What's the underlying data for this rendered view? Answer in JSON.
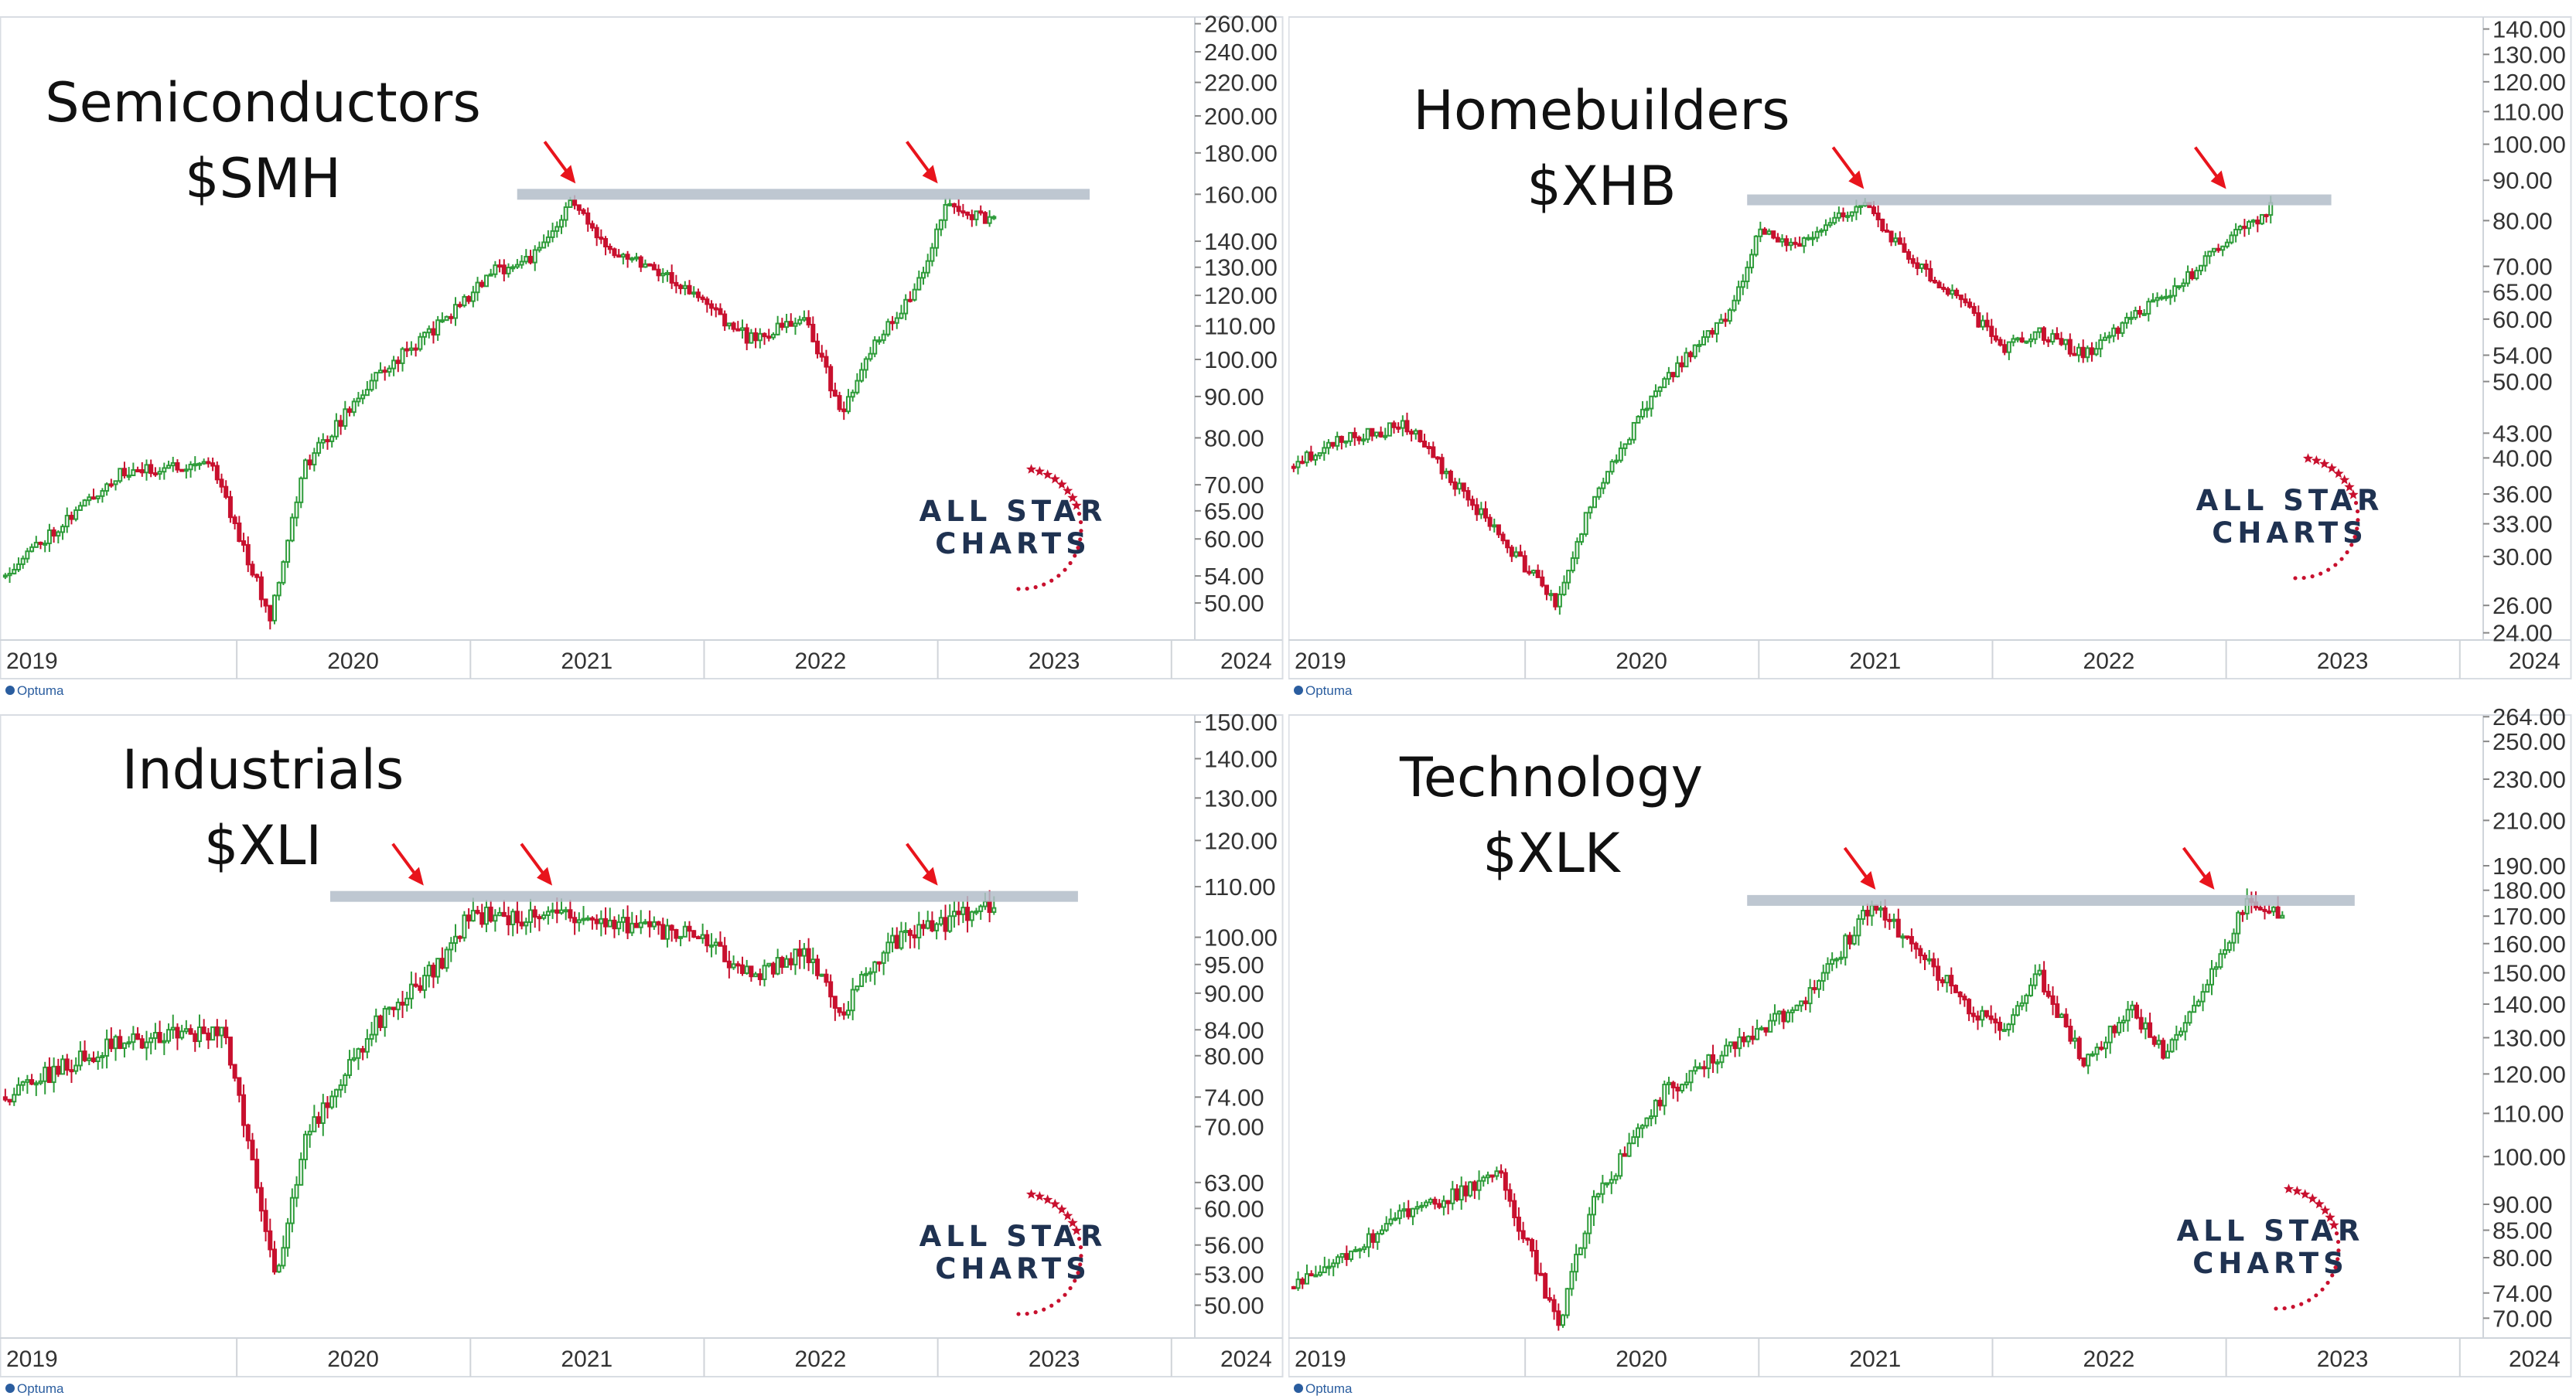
{
  "watermark": {
    "brand_line1": "ALL STAR",
    "brand_line2": "CHARTS",
    "credit": "Optuma"
  },
  "chart_data": [
    {
      "type": "candlestick",
      "title": "Semiconductors",
      "subtitle": "$SMH",
      "y_scale": "log",
      "ylim": [
        45,
        265
      ],
      "xlim": [
        2019.0,
        2024.1
      ],
      "yticks": [
        "260.00",
        "240.00",
        "220.00",
        "200.00",
        "180.00",
        "160.00",
        "140.00",
        "130.00",
        "120.00",
        "110.00",
        "100.00",
        "90.00",
        "80.00",
        "70.00",
        "65.00",
        "60.00",
        "54.00",
        "50.00"
      ],
      "xticks": [
        "2019",
        "2020",
        "2021",
        "2022",
        "2023",
        "2024"
      ],
      "resistance_level": 160,
      "resistance_span": [
        2021.2,
        2023.65
      ],
      "arrows_at": [
        2021.45,
        2023.0
      ],
      "keypoints": [
        [
          2019.0,
          54
        ],
        [
          2019.5,
          72
        ],
        [
          2019.9,
          75
        ],
        [
          2020.15,
          48
        ],
        [
          2020.3,
          74
        ],
        [
          2020.6,
          95
        ],
        [
          2020.9,
          112
        ],
        [
          2021.1,
          128
        ],
        [
          2021.3,
          135
        ],
        [
          2021.45,
          158
        ],
        [
          2021.55,
          140
        ],
        [
          2021.8,
          130
        ],
        [
          2022.0,
          118
        ],
        [
          2022.2,
          106
        ],
        [
          2022.45,
          112
        ],
        [
          2022.6,
          85
        ],
        [
          2022.75,
          106
        ],
        [
          2022.9,
          120
        ],
        [
          2023.05,
          155
        ],
        [
          2023.25,
          148
        ]
      ],
      "seed": 11
    },
    {
      "type": "candlestick",
      "title": "Homebuilders",
      "subtitle": "$XHB",
      "y_scale": "log",
      "ylim": [
        23.5,
        145
      ],
      "xlim": [
        2019.0,
        2024.1
      ],
      "yticks": [
        "140.00",
        "130.00",
        "120.00",
        "110.00",
        "100.00",
        "90.00",
        "80.00",
        "70.00",
        "65.00",
        "60.00",
        "54.00",
        "50.00",
        "43.00",
        "40.00",
        "36.00",
        "33.00",
        "30.00",
        "26.00",
        "24.00"
      ],
      "xticks": [
        "2019",
        "2020",
        "2021",
        "2022",
        "2023",
        "2024"
      ],
      "resistance_level": 85,
      "resistance_span": [
        2020.95,
        2023.45
      ],
      "arrows_at": [
        2021.45,
        2023.0
      ],
      "keypoints": [
        [
          2019.0,
          39
        ],
        [
          2019.2,
          42
        ],
        [
          2019.5,
          44
        ],
        [
          2020.15,
          26
        ],
        [
          2020.3,
          36
        ],
        [
          2020.6,
          50
        ],
        [
          2020.9,
          62
        ],
        [
          2021.0,
          77
        ],
        [
          2021.2,
          75
        ],
        [
          2021.45,
          85
        ],
        [
          2021.65,
          72
        ],
        [
          2021.9,
          62
        ],
        [
          2022.05,
          55
        ],
        [
          2022.2,
          58
        ],
        [
          2022.4,
          54
        ],
        [
          2022.6,
          60
        ],
        [
          2022.8,
          66
        ],
        [
          2023.0,
          75
        ],
        [
          2023.2,
          83
        ]
      ],
      "seed": 23
    },
    {
      "type": "candlestick",
      "title": "Industrials",
      "subtitle": "$XLI",
      "y_scale": "log",
      "ylim": [
        47,
        152
      ],
      "xlim": [
        2019.0,
        2024.1
      ],
      "yticks": [
        "150.00",
        "140.00",
        "130.00",
        "120.00",
        "110.00",
        "100.00",
        "95.00",
        "90.00",
        "84.00",
        "80.00",
        "74.00",
        "70.00",
        "63.00",
        "60.00",
        "56.00",
        "53.00",
        "50.00"
      ],
      "xticks": [
        "2019",
        "2020",
        "2021",
        "2022",
        "2023",
        "2024"
      ],
      "resistance_level": 108,
      "resistance_span": [
        2020.4,
        2023.6
      ],
      "arrows_at": [
        2020.8,
        2021.35,
        2023.0
      ],
      "keypoints": [
        [
          2019.0,
          74
        ],
        [
          2019.5,
          82
        ],
        [
          2019.95,
          84
        ],
        [
          2020.18,
          53
        ],
        [
          2020.3,
          68
        ],
        [
          2020.6,
          85
        ],
        [
          2020.9,
          96
        ],
        [
          2021.0,
          104
        ],
        [
          2021.2,
          104
        ],
        [
          2021.45,
          104
        ],
        [
          2021.7,
          102
        ],
        [
          2022.0,
          100
        ],
        [
          2022.2,
          93
        ],
        [
          2022.45,
          97
        ],
        [
          2022.6,
          87
        ],
        [
          2022.8,
          99
        ],
        [
          2023.0,
          102
        ],
        [
          2023.15,
          105
        ],
        [
          2023.25,
          107
        ]
      ],
      "seed": 37
    },
    {
      "type": "candlestick",
      "title": "Technology",
      "subtitle": "$XLK",
      "y_scale": "log",
      "ylim": [
        67,
        265
      ],
      "xlim": [
        2019.0,
        2024.1
      ],
      "yticks": [
        "264.00",
        "250.00",
        "230.00",
        "210.00",
        "190.00",
        "180.00",
        "170.00",
        "160.00",
        "150.00",
        "140.00",
        "130.00",
        "120.00",
        "110.00",
        "100.00",
        "90.00",
        "85.00",
        "80.00",
        "74.00",
        "70.00"
      ],
      "xticks": [
        "2019",
        "2020",
        "2021",
        "2022",
        "2023",
        "2024"
      ],
      "resistance_level": 176,
      "resistance_span": [
        2020.95,
        2023.55
      ],
      "arrows_at": [
        2021.5,
        2022.95
      ],
      "keypoints": [
        [
          2019.0,
          75
        ],
        [
          2019.5,
          88
        ],
        [
          2019.9,
          96
        ],
        [
          2020.15,
          69
        ],
        [
          2020.3,
          90
        ],
        [
          2020.6,
          115
        ],
        [
          2020.9,
          128
        ],
        [
          2021.2,
          140
        ],
        [
          2021.5,
          175
        ],
        [
          2021.65,
          160
        ],
        [
          2021.9,
          140
        ],
        [
          2022.05,
          132
        ],
        [
          2022.2,
          150
        ],
        [
          2022.4,
          124
        ],
        [
          2022.6,
          138
        ],
        [
          2022.75,
          125
        ],
        [
          2022.95,
          150
        ],
        [
          2023.1,
          176
        ],
        [
          2023.25,
          170
        ]
      ],
      "seed": 53
    }
  ]
}
